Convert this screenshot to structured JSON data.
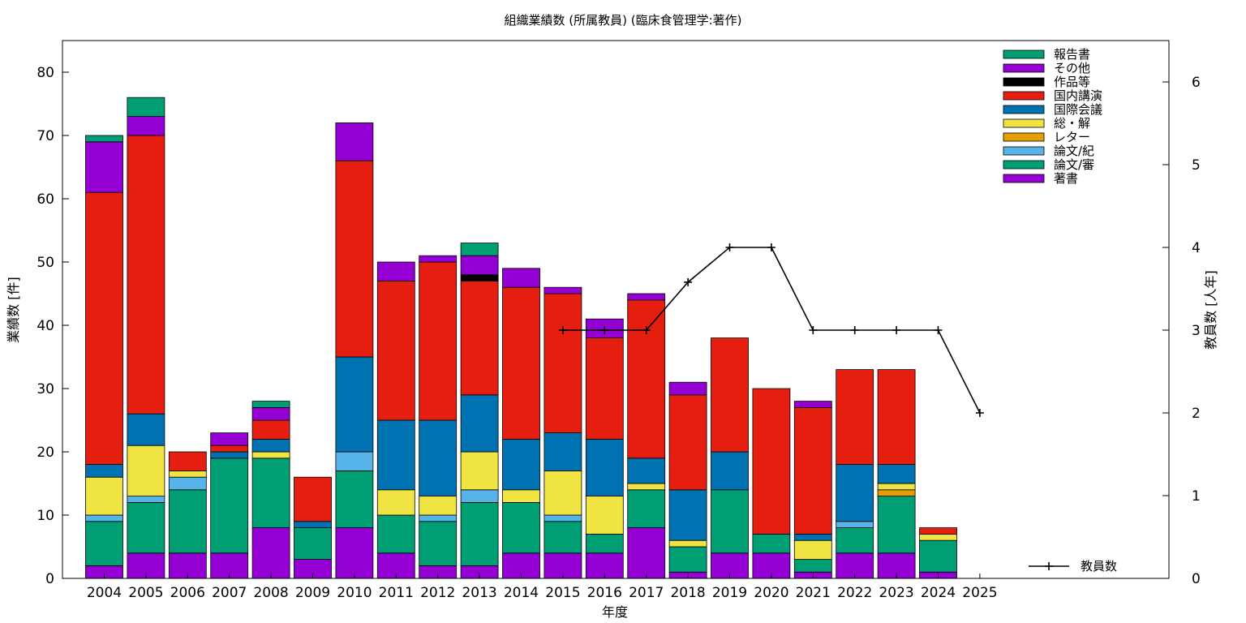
{
  "chart_data": {
    "type": "bar",
    "stacked": true,
    "title": "組織業績数 (所属教員) (臨床食管理学:著作)",
    "xlabel": "年度",
    "ylabel": "業績数 [件]",
    "y2label": "教員数 [人年]",
    "ylim": [
      0,
      85
    ],
    "y2lim": [
      0,
      6.5
    ],
    "yticks": [
      0,
      10,
      20,
      30,
      40,
      50,
      60,
      70,
      80
    ],
    "y2ticks": [
      0,
      1,
      2,
      3,
      4,
      5,
      6
    ],
    "grid": false,
    "legend_position": "top-right",
    "categories": [
      "2004",
      "2005",
      "2006",
      "2007",
      "2008",
      "2009",
      "2010",
      "2011",
      "2012",
      "2013",
      "2014",
      "2015",
      "2016",
      "2017",
      "2018",
      "2019",
      "2020",
      "2021",
      "2022",
      "2023",
      "2024",
      "2025"
    ],
    "series": [
      {
        "name": "著書",
        "color": "#9400d3",
        "values": [
          2,
          4,
          4,
          4,
          8,
          3,
          8,
          4,
          2,
          2,
          4,
          4,
          4,
          8,
          1,
          4,
          4,
          1,
          4,
          4,
          1,
          0
        ]
      },
      {
        "name": "論文/審",
        "color": "#009e73",
        "values": [
          7,
          8,
          10,
          15,
          11,
          5,
          9,
          6,
          7,
          10,
          8,
          5,
          3,
          6,
          4,
          10,
          3,
          2,
          4,
          9,
          5,
          0
        ]
      },
      {
        "name": "論文/紀",
        "color": "#56b4e9",
        "values": [
          1,
          1,
          2,
          0,
          0,
          0,
          3,
          0,
          1,
          2,
          0,
          1,
          0,
          0,
          0,
          0,
          0,
          0,
          1,
          0,
          0,
          0
        ]
      },
      {
        "name": "レター",
        "color": "#e69f00",
        "values": [
          0,
          0,
          0,
          0,
          0,
          0,
          0,
          0,
          0,
          0,
          0,
          0,
          0,
          0,
          0,
          0,
          0,
          0,
          0,
          1,
          0,
          0
        ]
      },
      {
        "name": "総・解",
        "color": "#f0e442",
        "values": [
          6,
          8,
          1,
          0,
          1,
          0,
          0,
          4,
          3,
          6,
          2,
          7,
          6,
          1,
          1,
          0,
          0,
          3,
          0,
          1,
          1,
          0
        ]
      },
      {
        "name": "国際会議",
        "color": "#0072b2",
        "values": [
          2,
          5,
          0,
          1,
          2,
          1,
          15,
          11,
          12,
          9,
          8,
          6,
          9,
          4,
          8,
          6,
          0,
          1,
          9,
          3,
          0,
          0
        ]
      },
      {
        "name": "国内講演",
        "color": "#e51e10",
        "values": [
          43,
          44,
          3,
          1,
          3,
          7,
          31,
          22,
          25,
          18,
          24,
          22,
          16,
          25,
          15,
          18,
          23,
          20,
          15,
          15,
          1,
          0
        ]
      },
      {
        "name": "作品等",
        "color": "#000000",
        "values": [
          0,
          0,
          0,
          0,
          0,
          0,
          0,
          0,
          0,
          1,
          0,
          0,
          0,
          0,
          0,
          0,
          0,
          0,
          0,
          0,
          0,
          0
        ]
      },
      {
        "name": "その他",
        "color": "#9400d3",
        "values": [
          8,
          3,
          0,
          2,
          2,
          0,
          6,
          3,
          1,
          3,
          3,
          1,
          3,
          1,
          2,
          0,
          0,
          1,
          0,
          0,
          0,
          0
        ]
      },
      {
        "name": "報告書",
        "color": "#009e73",
        "values": [
          1,
          3,
          0,
          0,
          1,
          0,
          0,
          0,
          0,
          2,
          0,
          0,
          0,
          0,
          0,
          0,
          0,
          0,
          0,
          0,
          0,
          0
        ]
      }
    ],
    "legend_order": [
      "報告書",
      "その他",
      "作品等",
      "国内講演",
      "国際会議",
      "総・解",
      "レター",
      "論文/紀",
      "論文/審",
      "著書"
    ],
    "line": {
      "name": "教員数",
      "axis": "y2",
      "x": [
        "2015",
        "2016",
        "2017",
        "2018",
        "2019",
        "2020",
        "2021",
        "2022",
        "2023",
        "2024",
        "2025"
      ],
      "values": [
        3,
        3,
        3,
        3.58,
        4,
        4,
        3,
        3,
        3,
        3,
        2
      ]
    }
  }
}
